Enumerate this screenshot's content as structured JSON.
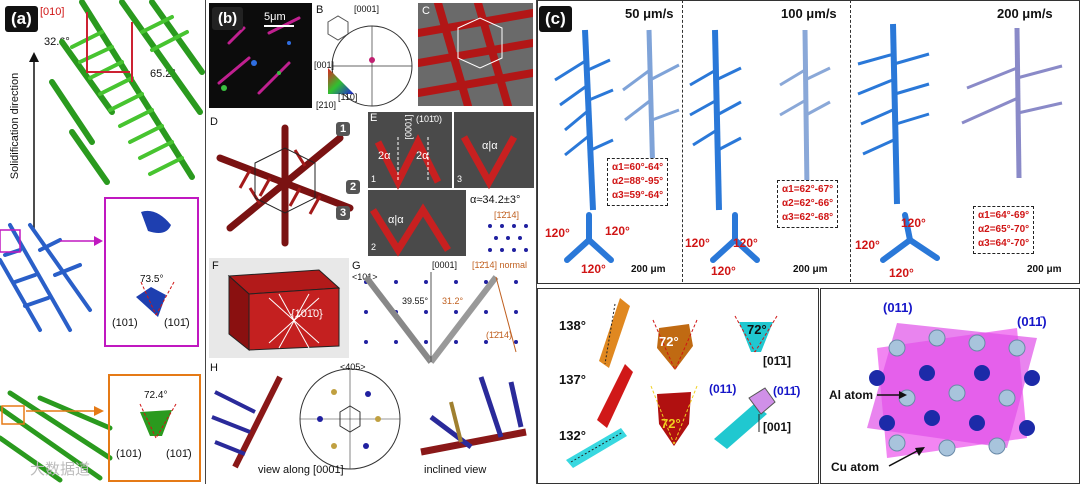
{
  "panel_a": {
    "label": "(a)",
    "axis_text": "Solidification direction",
    "direction": "[010]",
    "angle1": "32.6°",
    "angle2": "65.2°",
    "angle3": "73.5°",
    "angle4": "72.4°",
    "plane1": "(101)",
    "plane2": "(101̄)",
    "plane3": "(101)",
    "plane4": "(101̄)"
  },
  "panel_b": {
    "label": "(b)",
    "scale": "5μm",
    "b_sub": "B",
    "b_dir": "[0001]",
    "ipf_001": "[001]",
    "ipf_110": "[110]",
    "ipf_210": "[210]",
    "c_sub": "C",
    "d_sub": "D",
    "d_1": "1",
    "d_2": "2",
    "d_3": "3",
    "e_sub": "E",
    "e_0001": "[0001]",
    "e_plane": "(101̄0)",
    "e_alpha": "α≈34.2±3°",
    "e_2a": "2α",
    "e_aa": "α|α",
    "e_1": "1",
    "e_2": "2",
    "e_3": "3",
    "e_plane2": "[1̄2̄14]",
    "f_sub": "F",
    "f_plane": "{101̄0}",
    "g_sub": "G",
    "g_101": "<101>",
    "g_0001": "[0001]",
    "g_a1": "39.55°",
    "g_a2": "31.2°",
    "g_normal": "[1̄2̄14] normal",
    "g_pl": "(1̄2̄14)",
    "h_sub": "H",
    "h_405": "<405>",
    "h_view1": "view along [0001]",
    "h_view2": "inclined view"
  },
  "panel_c": {
    "label": "(c)",
    "v1": "50 μm/s",
    "v2": "100 μm/s",
    "v3": "200 μm/s",
    "box1": [
      "α1=60°-64°",
      "α2=88°-95°",
      "α3=59°-64°"
    ],
    "box2": [
      "α1=62°-67°",
      "α2=62°-66°",
      "α3=62°-68°"
    ],
    "box3": [
      "α1=64°-69°",
      "α2=65°-70°",
      "α3=64°-70°"
    ],
    "tri": "120°",
    "scale": "200 μm",
    "a138": "138°",
    "a137": "137°",
    "a132": "132°",
    "a72": "72°",
    "d_0m11": "[01̄1]",
    "d_001": "[001]",
    "p011": "(011)",
    "p01m1": "(011̄)",
    "al": "Al atom",
    "cu": "Cu atom"
  },
  "watermark": "大数据道"
}
